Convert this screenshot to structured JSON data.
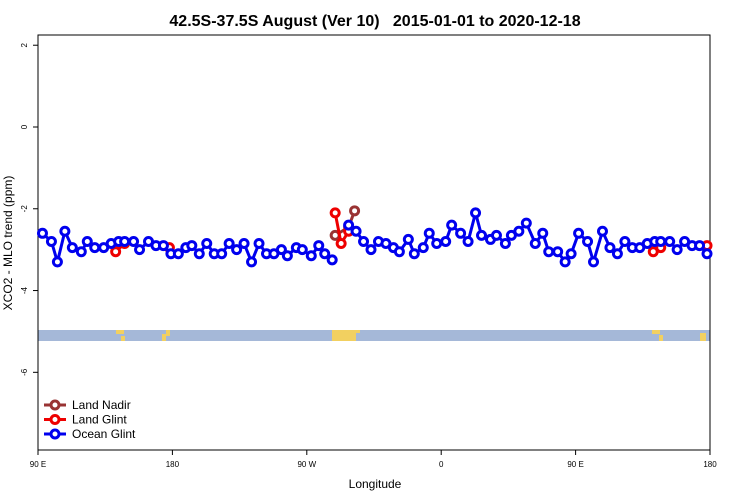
{
  "chart_data": {
    "type": "line",
    "title": "42.5S-37.5S August (Ver 10)   2015-01-01 to 2020-12-18",
    "x_label": "Longitude",
    "y_label": "XCO2 - MLO trend (ppm)",
    "xlim": [
      90,
      540
    ],
    "xticks": [
      {
        "value": 90,
        "label": "90 E"
      },
      180,
      {
        "value": 270,
        "label": "90 W"
      },
      {
        "value": 360,
        "label": "0"
      },
      {
        "value": 450,
        "label": "90 E"
      },
      {
        "value": 540,
        "label": "180"
      }
    ],
    "ylim": [
      -7.9,
      2.25
    ],
    "yticks": [
      -6,
      -4,
      -2,
      0,
      2
    ],
    "legend": "bottom-left",
    "series": [
      {
        "name": "Land Nadir",
        "color": "#993333",
        "x": [
          289,
          298,
          302
        ],
        "values": [
          -2.65,
          -2.45,
          -2.05
        ]
      },
      {
        "name": "Land Glint",
        "color": "#ee0000",
        "x": [
          142,
          148,
          null,
          178,
          null,
          289,
          293,
          298,
          null,
          502,
          507,
          null,
          538
        ],
        "values": [
          -3.05,
          -2.85,
          null,
          -2.95,
          null,
          -2.1,
          -2.85,
          -2.55,
          null,
          -3.05,
          -2.95,
          null,
          -2.9
        ]
      },
      {
        "name": "Ocean Glint",
        "color": "#0000ee",
        "x": [
          93,
          99,
          103,
          108,
          113,
          119,
          123,
          128,
          134,
          139,
          144,
          148,
          154,
          158,
          164,
          169,
          174,
          179,
          184,
          189,
          193,
          198,
          203,
          208,
          213,
          218,
          223,
          228,
          233,
          238,
          243,
          248,
          253,
          257,
          263,
          267,
          273,
          278,
          282,
          287,
          null,
          298,
          303,
          308,
          313,
          318,
          323,
          328,
          332,
          338,
          342,
          348,
          352,
          357,
          363,
          367,
          373,
          378,
          383,
          387,
          393,
          397,
          403,
          407,
          412,
          417,
          423,
          428,
          432,
          438,
          443,
          447,
          452,
          458,
          462,
          468,
          473,
          478,
          483,
          488,
          493,
          498,
          503,
          507,
          513,
          518,
          523,
          528,
          533,
          538
        ],
        "values": [
          -2.6,
          -2.8,
          -3.3,
          -2.55,
          -2.95,
          -3.05,
          -2.8,
          -2.95,
          -2.95,
          -2.85,
          -2.8,
          -2.8,
          -2.8,
          -3.0,
          -2.8,
          -2.9,
          -2.9,
          -3.1,
          -3.1,
          -2.95,
          -2.9,
          -3.1,
          -2.85,
          -3.1,
          -3.1,
          -2.85,
          -3.0,
          -2.85,
          -3.3,
          -2.85,
          -3.1,
          -3.1,
          -3.0,
          -3.15,
          -2.95,
          -3.0,
          -3.15,
          -2.9,
          -3.1,
          -3.25,
          null,
          -2.4,
          -2.55,
          -2.8,
          -3.0,
          -2.8,
          -2.85,
          -2.95,
          -3.05,
          -2.75,
          -3.1,
          -2.95,
          -2.6,
          -2.85,
          -2.8,
          -2.4,
          -2.6,
          -2.8,
          -2.1,
          -2.65,
          -2.75,
          -2.65,
          -2.85,
          -2.65,
          -2.55,
          -2.35,
          -2.85,
          -2.6,
          -3.05,
          -3.05,
          -3.3,
          -3.1,
          -2.6,
          -2.8,
          -3.3,
          -2.55,
          -2.95,
          -3.1,
          -2.8,
          -2.95,
          -2.95,
          -2.85,
          -2.8,
          -2.8,
          -2.8,
          -3.0,
          -2.8,
          -2.9,
          -2.9,
          -3.1
        ]
      }
    ]
  }
}
